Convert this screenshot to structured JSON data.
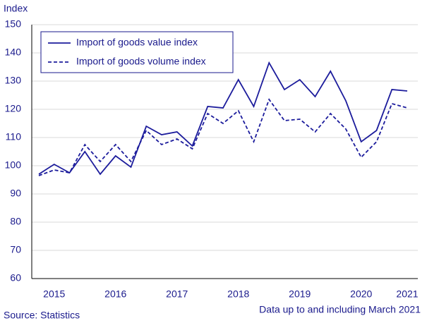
{
  "chart_data": {
    "type": "line",
    "y_label": "Index",
    "source": "Source: Statistics",
    "note": "Data up to and including March 2021",
    "categories": [
      null,
      "2015",
      null,
      null,
      null,
      "2016",
      null,
      null,
      null,
      "2017",
      null,
      null,
      null,
      "2018",
      null,
      null,
      null,
      "2019",
      null,
      null,
      null,
      "2020",
      null,
      null,
      "2021"
    ],
    "series": [
      {
        "name": "Import of goods value index",
        "color": "#1c1c9c",
        "line_style": "solid",
        "values": [
          97,
          100.5,
          97.5,
          105,
          97,
          103.5,
          99.5,
          114,
          111,
          112,
          107,
          121,
          120.5,
          130.5,
          121,
          136.5,
          127,
          130.5,
          124.5,
          133.5,
          123,
          108.5,
          112.5,
          127,
          126.5
        ]
      },
      {
        "name": "Import of goods volume index",
        "color": "#1c1c9c",
        "line_style": "dashed",
        "values": [
          96.5,
          98.5,
          97.5,
          107.5,
          101.5,
          107.5,
          101.5,
          112.5,
          107.5,
          109.5,
          106,
          118.5,
          115,
          119.5,
          108.5,
          123.5,
          116,
          116.5,
          112,
          118.5,
          113,
          103,
          108.5,
          122,
          120.5
        ]
      }
    ],
    "ylim": [
      60,
      150
    ],
    "yticks": [
      60,
      70,
      80,
      90,
      100,
      110,
      120,
      130,
      140,
      150
    ],
    "grid": true,
    "legend": "upper left"
  }
}
